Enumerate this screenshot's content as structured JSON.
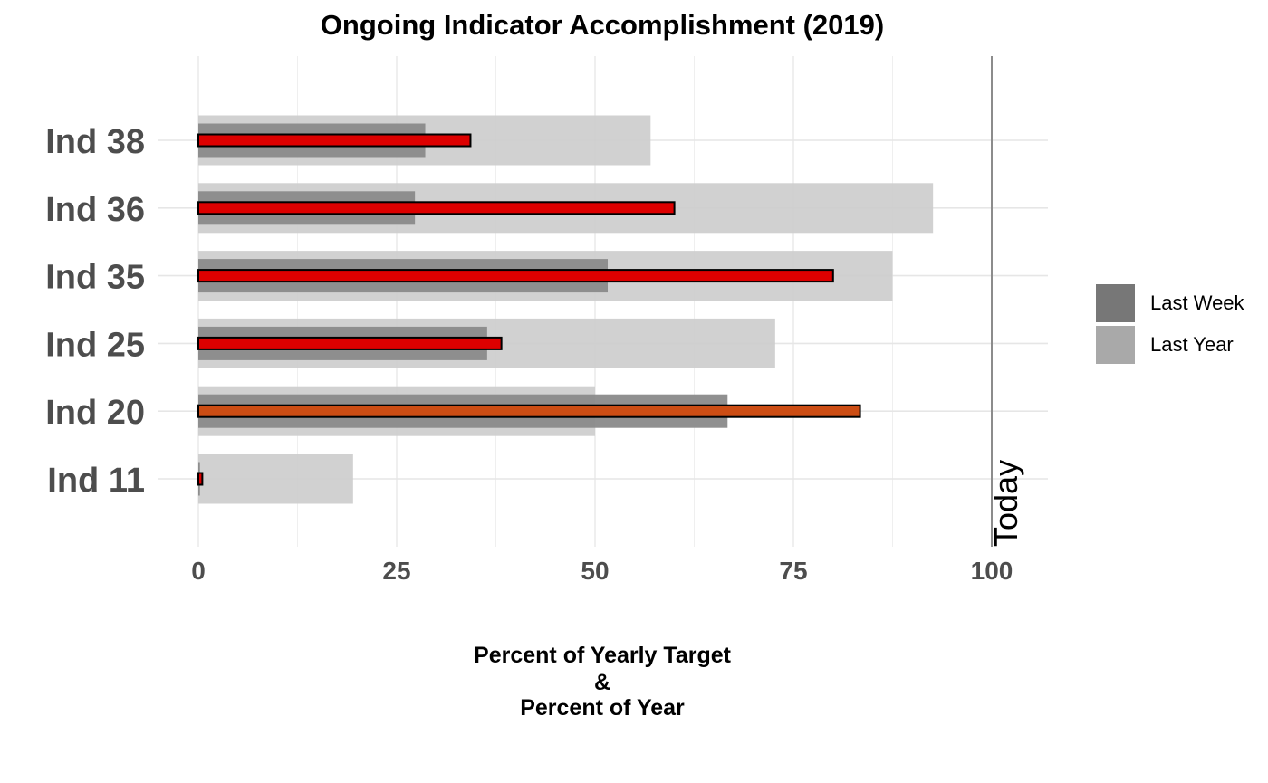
{
  "chart_data": {
    "type": "bar",
    "orientation": "horizontal",
    "title": "Ongoing Indicator Accomplishment (2019)",
    "xlabel_lines": [
      "Percent of Yearly Target",
      "&",
      "Percent of Year"
    ],
    "ylabel": "",
    "xlim": [
      0,
      100
    ],
    "xticks": [
      "0",
      "25",
      "50",
      "75",
      "100"
    ],
    "categories": [
      "Ind 38",
      "Ind 36",
      "Ind 35",
      "Ind 25",
      "Ind 20",
      "Ind 11"
    ],
    "series": [
      {
        "name": "Last Year",
        "values": [
          57,
          92.6,
          87.5,
          72.7,
          50,
          19.5
        ],
        "color": "#cccccc"
      },
      {
        "name": "Last Week",
        "values": [
          28.6,
          27.3,
          51.6,
          36.4,
          66.7,
          0.2
        ],
        "color": "#8a8a8a"
      },
      {
        "values": [
          34.3,
          60,
          80,
          38.2,
          83.4,
          0.5
        ],
        "colors": [
          "#dd0000",
          "#dd0000",
          "#dd0000",
          "#dd0000",
          "#cc4d14",
          "#dd0000"
        ]
      }
    ],
    "reference_line": {
      "value": 100,
      "label": "Today"
    },
    "grid": true,
    "legend_position": "right"
  },
  "legend": {
    "items": [
      {
        "label": "Last Week",
        "color": "#777777"
      },
      {
        "label": "Last Year",
        "color": "#a9a9a9"
      }
    ]
  }
}
